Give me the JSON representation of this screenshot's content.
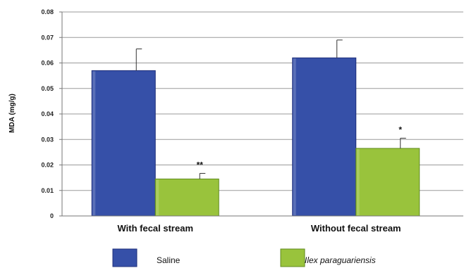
{
  "chart_data": {
    "type": "bar",
    "title": "",
    "xlabel": "",
    "ylabel": "MDA (mg/g)",
    "ylim": [
      0,
      0.08
    ],
    "yticks": [
      "0",
      "0.01",
      "0.02",
      "0.03",
      "0.04",
      "0.05",
      "0.06",
      "0.07",
      "0.08"
    ],
    "grid": true,
    "legend_position": "bottom",
    "categories": [
      "With fecal stream",
      "Without fecal stream"
    ],
    "series": [
      {
        "name": "Saline",
        "color": "#3650a8",
        "values": [
          0.057,
          0.062
        ],
        "errors": [
          0.0085,
          0.007
        ],
        "significance": [
          "",
          ""
        ]
      },
      {
        "name": "Ilex paraguariensis",
        "color": "#99c33c",
        "values": [
          0.0145,
          0.0265
        ],
        "errors": [
          0.0022,
          0.004
        ],
        "significance": [
          "**",
          "*"
        ]
      }
    ]
  }
}
